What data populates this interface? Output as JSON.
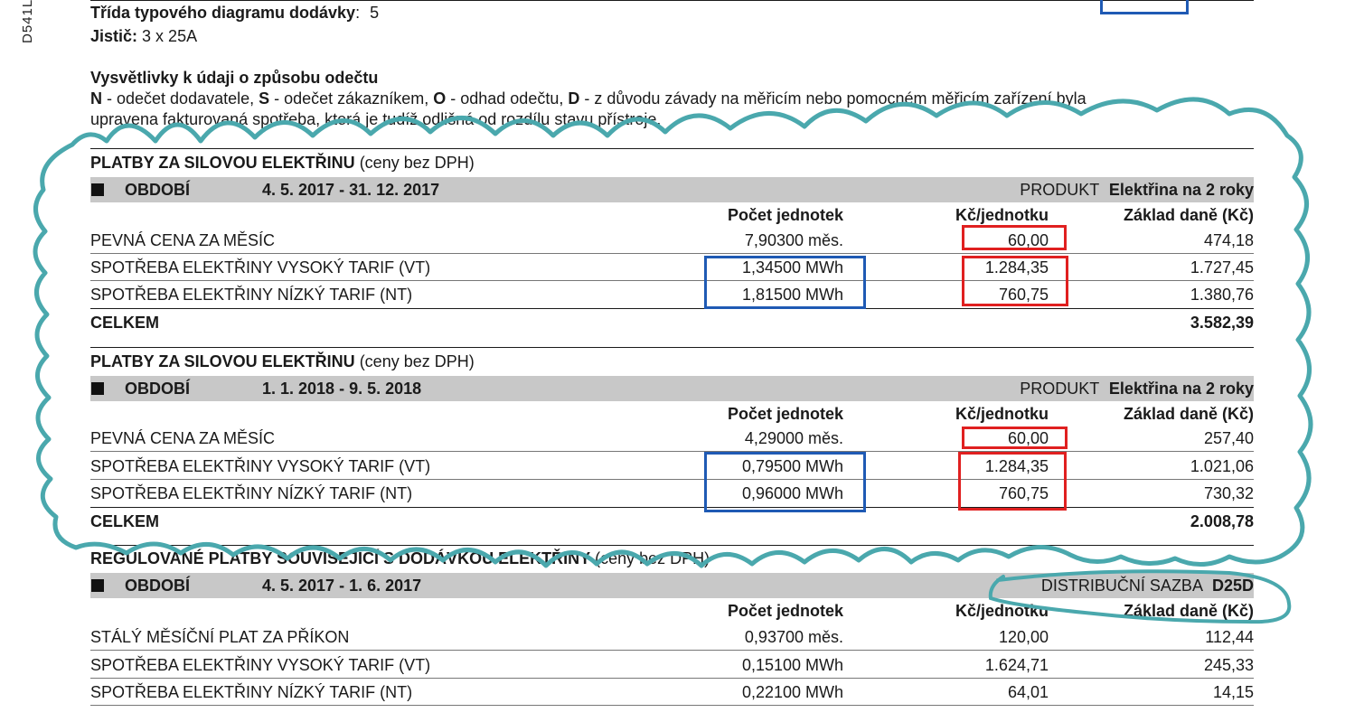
{
  "side_code": "D541L",
  "header": {
    "diagram_label": "Třída typového diagramu dodávky",
    "diagram_colon": ":",
    "diagram_value": "5",
    "breaker_label": "Jistič:",
    "breaker_value": "3 x 25A"
  },
  "legend": {
    "title": "Vysvětlivky k údaji o způsobu odečtu",
    "line1": {
      "n_key": "N",
      "n_text": " - odečet dodavatele, ",
      "s_key": "S",
      "s_text": " - odečet zákazníkem, ",
      "o_key": "O",
      "o_text": " - odhad odečtu, ",
      "d_key": "D",
      "d_text": " - z důvodu závady na měřicím nebo pomocném měřicím zařízení byla"
    },
    "line2": "upravena fakturovaná spotřeba, která je tudíž odlišná od rozdílu stavu přístroje."
  },
  "columns": {
    "units": "Počet jednotek",
    "price": "Kč/jednotku",
    "base": "Základ daně (Kč)"
  },
  "section1": {
    "title": "PLATBY ZA SILOVOU ELEKTŘINU",
    "title_note": " (ceny bez DPH)",
    "period_label": "OBDOBÍ",
    "period": "4. 5. 2017 - 31. 12. 2017",
    "product_label": "PRODUKT",
    "product": "Elektřina na 2 roky",
    "rows": [
      {
        "name": "PEVNÁ CENA ZA MĚSÍC",
        "units": "7,90300 měs.",
        "price": "60,00",
        "base": "474,18"
      },
      {
        "name": "SPOTŘEBA ELEKTŘINY VYSOKÝ TARIF (VT)",
        "units": "1,34500 MWh",
        "price": "1.284,35",
        "base": "1.727,45"
      },
      {
        "name": "SPOTŘEBA ELEKTŘINY NÍZKÝ TARIF (NT)",
        "units": "1,81500 MWh",
        "price": "760,75",
        "base": "1.380,76"
      }
    ],
    "total_label": "CELKEM",
    "total": "3.582,39"
  },
  "section2": {
    "title": "PLATBY ZA SILOVOU ELEKTŘINU",
    "title_note": " (ceny bez DPH)",
    "period_label": "OBDOBÍ",
    "period": "1. 1. 2018 - 9. 5. 2018",
    "product_label": "PRODUKT",
    "product": "Elektřina na 2 roky",
    "rows": [
      {
        "name": "PEVNÁ CENA ZA MĚSÍC",
        "units": "4,29000 měs.",
        "price": "60,00",
        "base": "257,40"
      },
      {
        "name": "SPOTŘEBA ELEKTŘINY VYSOKÝ TARIF (VT)",
        "units": "0,79500 MWh",
        "price": "1.284,35",
        "base": "1.021,06"
      },
      {
        "name": "SPOTŘEBA ELEKTŘINY NÍZKÝ TARIF (NT)",
        "units": "0,96000 MWh",
        "price": "760,75",
        "base": "730,32"
      }
    ],
    "total_label": "CELKEM",
    "total": "2.008,78"
  },
  "section3": {
    "title": "REGULOVANÉ PLATBY SOUVISEJÍCÍ S DODÁVKOU ELEKTŘINY",
    "title_note": " (ceny bez DPH)",
    "period_label": "OBDOBÍ",
    "period": "4. 5. 2017 - 1. 6. 2017",
    "rate_label": "DISTRIBUČNÍ SAZBA",
    "rate": "D25D",
    "rows": [
      {
        "name": "STÁLÝ MĚSÍČNÍ PLAT ZA PŘÍKON",
        "units": "0,93700 měs.",
        "price": "120,00",
        "base": "112,44"
      },
      {
        "name": "SPOTŘEBA ELEKTŘINY VYSOKÝ TARIF (VT)",
        "units": "0,15100 MWh",
        "price": "1.624,71",
        "base": "245,33"
      },
      {
        "name": "SPOTŘEBA ELEKTŘINY NÍZKÝ TARIF (NT)",
        "units": "0,22100 MWh",
        "price": "64,01",
        "base": "14,15"
      }
    ]
  },
  "colors": {
    "annotation_cloud": "#4aa8ad",
    "highlight_blue": "#1f5ab4",
    "highlight_red": "#e02020",
    "band_gray": "#c8c8c8"
  }
}
